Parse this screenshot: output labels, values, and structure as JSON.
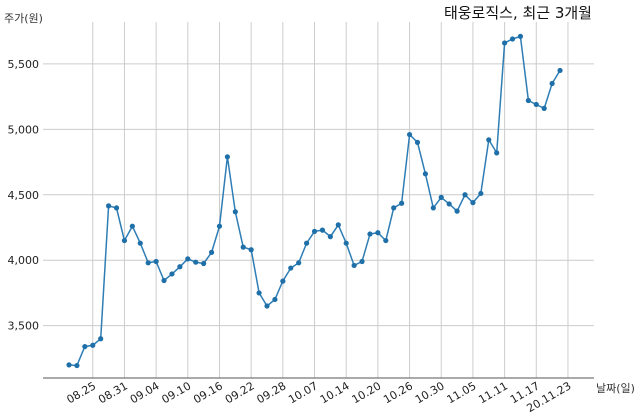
{
  "chart_data": {
    "type": "line",
    "title": "태웅로직스, 최근 3개월",
    "xlabel": "날짜(일)",
    "ylabel": "주가(원)",
    "ylim": [
      3100,
      5820
    ],
    "yticks": [
      3500,
      4000,
      4500,
      5000,
      5500
    ],
    "ytick_labels": [
      "3,500",
      "4,000",
      "4,500",
      "5,000",
      "5,500"
    ],
    "xtick_labels": [
      "08.25",
      "08.31",
      "09.04",
      "09.10",
      "09.16",
      "09.22",
      "09.28",
      "10.07",
      "10.14",
      "10.20",
      "10.26",
      "10.30",
      "11.05",
      "11.11",
      "11.17",
      "20.11.23"
    ],
    "xtick_index": [
      3,
      7,
      11,
      15,
      19,
      23,
      27,
      31,
      35,
      39,
      43,
      47,
      51,
      55,
      59,
      63
    ],
    "grid": true,
    "series": [
      {
        "values": [
          3200,
          3195,
          3340,
          3350,
          3400,
          4415,
          4400,
          4150,
          4260,
          4130,
          3980,
          3990,
          3845,
          3895,
          3950,
          4010,
          3985,
          3975,
          4060,
          4260,
          4790,
          4370,
          4100,
          4080,
          3750,
          3650,
          3700,
          3840,
          3940,
          3980,
          4130,
          4220,
          4230,
          4180,
          4270,
          4130,
          3960,
          3990,
          4200,
          4210,
          4150,
          4400,
          4435,
          4960,
          4900,
          4660,
          4400,
          4480,
          4430,
          4375,
          4500,
          4440,
          4510,
          4920,
          4820,
          5660,
          5690,
          5710,
          5220,
          5190,
          5160,
          5350,
          5450
        ]
      }
    ]
  }
}
